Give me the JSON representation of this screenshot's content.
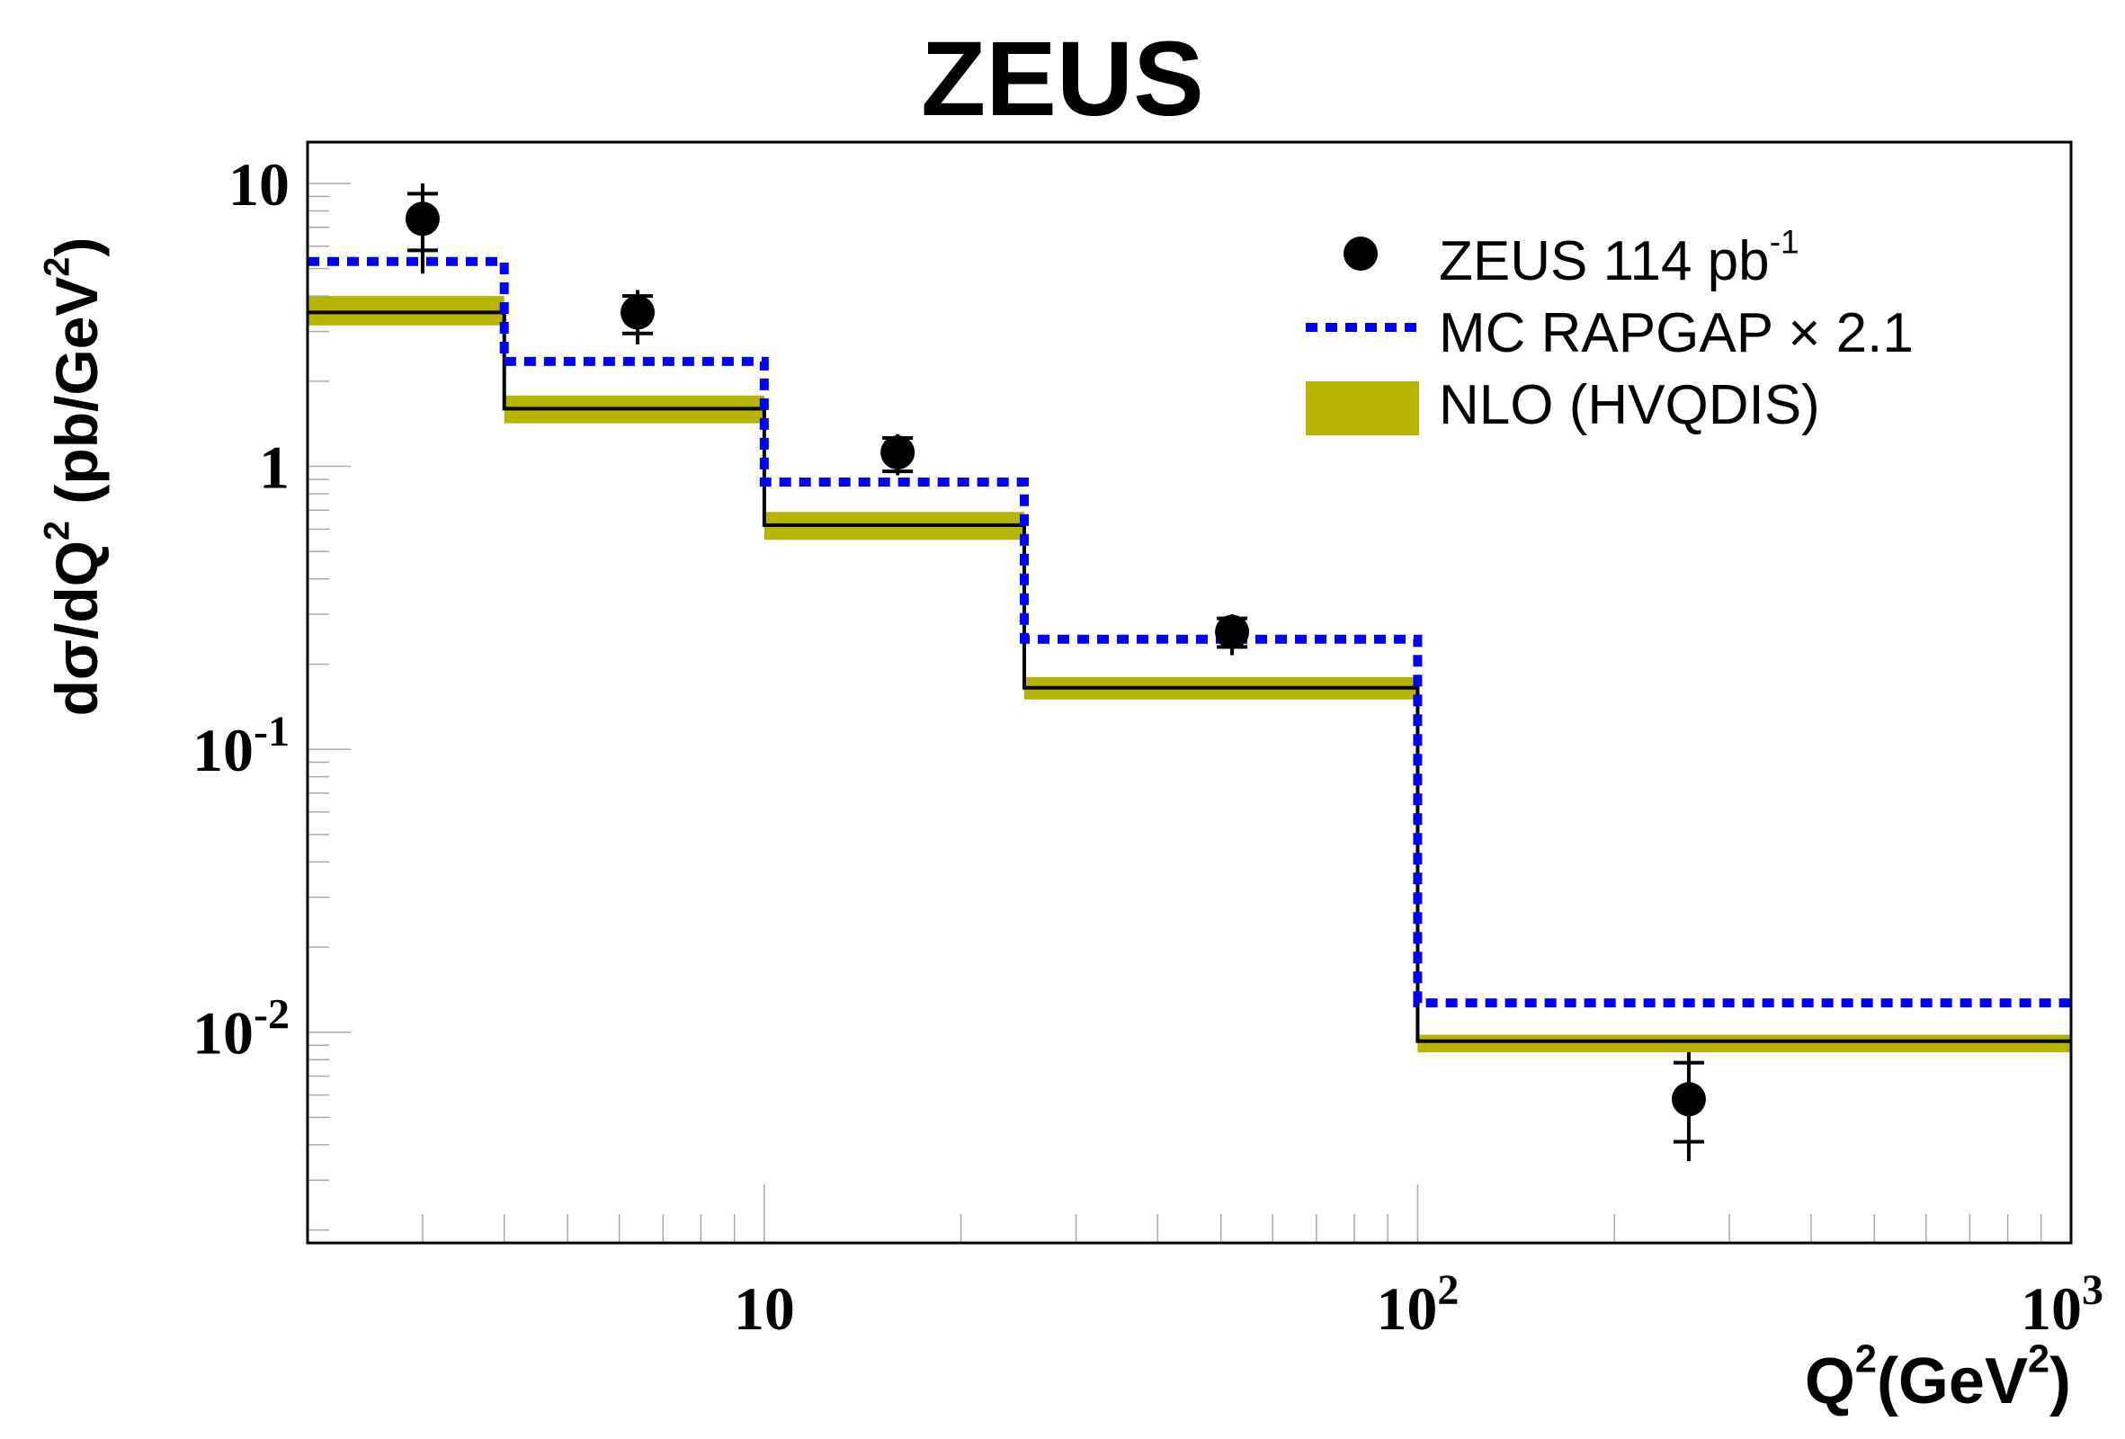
{
  "chart_data": {
    "type": "line",
    "title": "ZEUS",
    "ylabel": {
      "main": "dσ/dQ",
      "sup1": "2",
      "mid": " (pb/GeV",
      "sup2": "2",
      "end": ")"
    },
    "xlabel": {
      "main": "Q",
      "sup1": "2",
      "mid": "(GeV",
      "sup2": "2",
      "end": ")"
    },
    "x_scale": "log",
    "y_scale": "log",
    "xlim": [
      2,
      1000
    ],
    "ylim": [
      0.0018,
      14
    ],
    "x_ticks": [
      {
        "value": 10,
        "label": "10"
      },
      {
        "value": 100,
        "label": "10",
        "exp": "2"
      },
      {
        "value": 1000,
        "label": "10",
        "exp": "3"
      }
    ],
    "y_ticks": [
      {
        "value": 10,
        "label": "10"
      },
      {
        "value": 1,
        "label": "1"
      },
      {
        "value": 0.1,
        "label": "10",
        "exp": "-1"
      },
      {
        "value": 0.01,
        "label": "10",
        "exp": "-2"
      }
    ],
    "bin_edges": [
      2,
      4,
      10,
      25,
      100,
      1000
    ],
    "series": [
      {
        "name": "ZEUS 114 pb",
        "name_sup": "-1",
        "kind": "points",
        "color": "#000000",
        "points": [
          {
            "x": 3,
            "y": 7.5,
            "ylo": 5.8,
            "yhi": 9.2,
            "ylo_tot": 4.8,
            "yhi_tot": 10
          },
          {
            "x": 6.4,
            "y": 3.5,
            "ylo": 2.95,
            "yhi": 4.0,
            "ylo_tot": 2.7,
            "yhi_tot": 4.2
          },
          {
            "x": 16,
            "y": 1.12,
            "ylo": 0.96,
            "yhi": 1.26,
            "ylo_tot": 0.93,
            "yhi_tot": 1.3
          },
          {
            "x": 52,
            "y": 0.26,
            "ylo": 0.23,
            "yhi": 0.29,
            "ylo_tot": 0.215,
            "yhi_tot": 0.3
          },
          {
            "x": 260,
            "y": 0.0058,
            "ylo": 0.0041,
            "yhi": 0.0078,
            "ylo_tot": 0.0035,
            "yhi_tot": 0.0085
          }
        ]
      },
      {
        "name": "MC RAPGAP",
        "name_suffix": "× 2.1",
        "kind": "histogram-dashed",
        "color": "#0000ff",
        "values": [
          5.3,
          2.35,
          0.88,
          0.245,
          0.0127
        ]
      },
      {
        "name": "NLO (HVQDIS)",
        "kind": "histogram-band",
        "color": "#b5b500",
        "line_color": "#000000",
        "values": [
          3.5,
          1.6,
          0.62,
          0.165,
          0.0093
        ],
        "band_lo": [
          3.15,
          1.42,
          0.55,
          0.15,
          0.0085
        ],
        "band_hi": [
          4.0,
          1.78,
          0.69,
          0.18,
          0.0098
        ]
      }
    ],
    "legend_position": "top-right"
  }
}
